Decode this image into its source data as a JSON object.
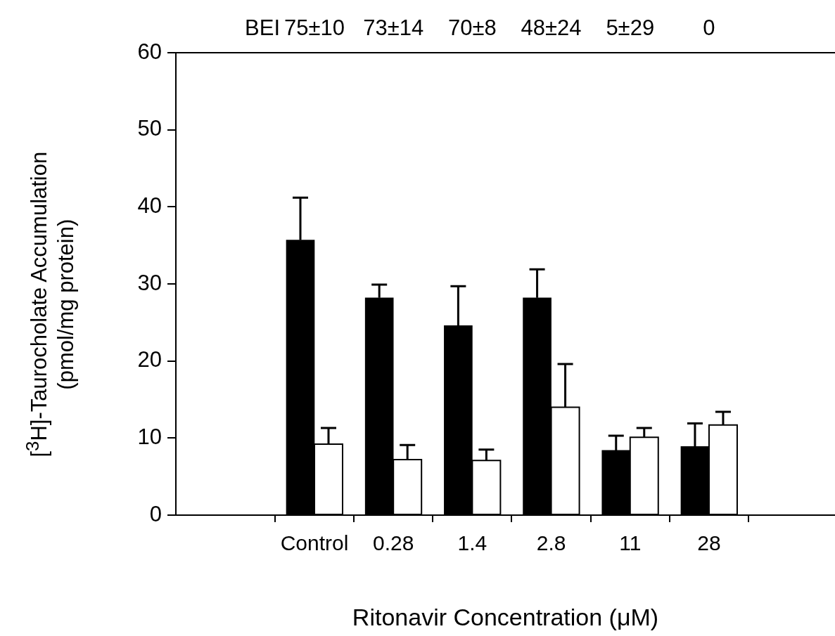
{
  "chart_data": {
    "type": "bar",
    "xlabel": "Ritonavir Concentration (μM)",
    "ylabel": "[$^{3}$H]-Taurocholate Accumulation\n(pmol/mg protein)",
    "categories": [
      "Control",
      "0.28",
      "1.4",
      "2.8",
      "11",
      "28"
    ],
    "series": [
      {
        "color": "#000000",
        "values": [
          35.7,
          28.2,
          24.6,
          28.2,
          8.4,
          8.9
        ],
        "errors": [
          [
            35.7,
            41.2
          ],
          [
            28.2,
            29.9
          ],
          [
            24.6,
            29.7
          ],
          [
            28.2,
            31.9
          ],
          [
            8.4,
            10.3
          ],
          [
            8.9,
            11.9
          ]
        ]
      },
      {
        "color": "#ffffff",
        "values": [
          9.2,
          7.2,
          7.1,
          14.0,
          10.1,
          11.7
        ],
        "errors": [
          [
            9.2,
            11.3
          ],
          [
            7.2,
            9.1
          ],
          [
            7.1,
            8.5
          ],
          [
            14.0,
            19.6
          ],
          [
            10.1,
            11.3
          ],
          [
            11.7,
            13.4
          ]
        ]
      }
    ],
    "ylim": [
      0,
      60
    ],
    "yticks": [
      0,
      10,
      20,
      30,
      40,
      50,
      60
    ],
    "grid": false,
    "legend": false,
    "annotations": [
      "BEI",
      "75±10",
      "73±14",
      "70±8",
      "48±24",
      "5±29",
      "0"
    ]
  }
}
